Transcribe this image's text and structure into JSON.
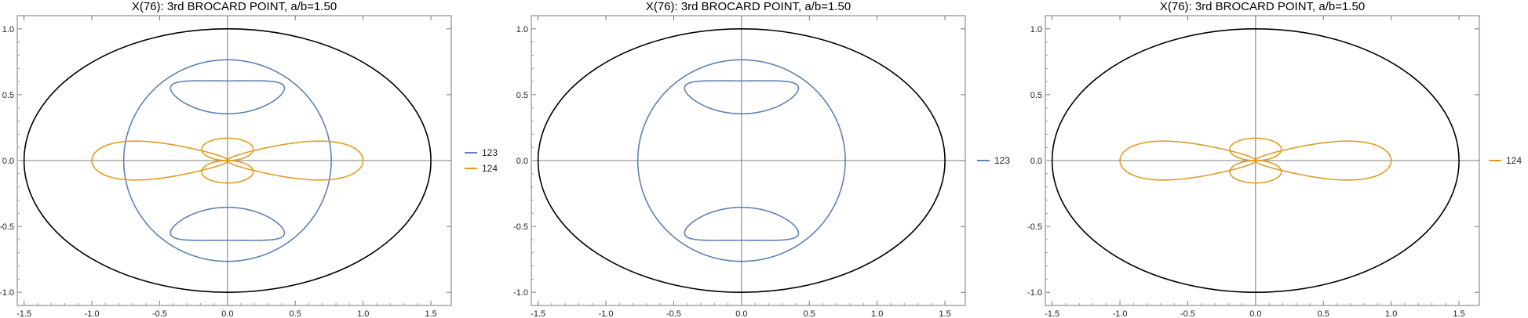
{
  "chart_data": [
    {
      "type": "line",
      "title": "X(76): 3rd BROCARD POINT, a/b=1.50",
      "xlabel": "",
      "ylabel": "",
      "xlim": [
        -1.55,
        1.65
      ],
      "ylim": [
        -1.1,
        1.1
      ],
      "xticks": [
        -1.5,
        -1.0,
        -0.5,
        0.0,
        0.5,
        1.0,
        1.5
      ],
      "xtick_labels": [
        "-1.5",
        "-1.0",
        "-0.5",
        "0.0",
        "0.5",
        "1.0",
        "1.5"
      ],
      "yticks": [
        -1.0,
        -0.5,
        0.0,
        0.5,
        1.0
      ],
      "ytick_labels": [
        "-1.0",
        "-0.5",
        "0.0",
        "0.5",
        "1.0"
      ],
      "grid": false,
      "legend_position": "right",
      "boundary": {
        "shape": "ellipse",
        "a": 1.5,
        "b": 1.0,
        "color": "#000000"
      },
      "series": [
        {
          "name": "123",
          "color": "#5e81b5",
          "curve": "brocard-123"
        },
        {
          "name": "124",
          "color": "#e19c24",
          "curve": "brocard-124"
        }
      ]
    },
    {
      "type": "line",
      "title": "X(76): 3rd BROCARD POINT, a/b=1.50",
      "xlabel": "",
      "ylabel": "",
      "xlim": [
        -1.55,
        1.65
      ],
      "ylim": [
        -1.1,
        1.1
      ],
      "xticks": [
        -1.5,
        -1.0,
        -0.5,
        0.0,
        0.5,
        1.0,
        1.5
      ],
      "xtick_labels": [
        "-1.5",
        "-1.0",
        "-0.5",
        "0.0",
        "0.5",
        "1.0",
        "1.5"
      ],
      "yticks": [
        -1.0,
        -0.5,
        0.0,
        0.5,
        1.0
      ],
      "ytick_labels": [
        "-1.0",
        "-0.5",
        "0.0",
        "0.5",
        "1.0"
      ],
      "grid": false,
      "legend_position": "right",
      "boundary": {
        "shape": "ellipse",
        "a": 1.5,
        "b": 1.0,
        "color": "#000000"
      },
      "series": [
        {
          "name": "123",
          "color": "#5e81b5",
          "curve": "brocard-123"
        }
      ]
    },
    {
      "type": "line",
      "title": "X(76): 3rd BROCARD POINT, a/b=1.50",
      "xlabel": "",
      "ylabel": "",
      "xlim": [
        -1.55,
        1.65
      ],
      "ylim": [
        -1.1,
        1.1
      ],
      "xticks": [
        -1.5,
        -1.0,
        -0.5,
        0.0,
        0.5,
        1.0,
        1.5
      ],
      "xtick_labels": [
        "-1.5",
        "-1.0",
        "-0.5",
        "0.0",
        "0.5",
        "1.0",
        "1.5"
      ],
      "yticks": [
        -1.0,
        -0.5,
        0.0,
        0.5,
        1.0
      ],
      "ytick_labels": [
        "-1.0",
        "-0.5",
        "0.0",
        "0.5",
        "1.0"
      ],
      "grid": false,
      "legend_position": "right",
      "boundary": {
        "shape": "ellipse",
        "a": 1.5,
        "b": 1.0,
        "color": "#000000"
      },
      "series": [
        {
          "name": "124",
          "color": "#e19c24",
          "curve": "brocard-124"
        }
      ]
    }
  ]
}
